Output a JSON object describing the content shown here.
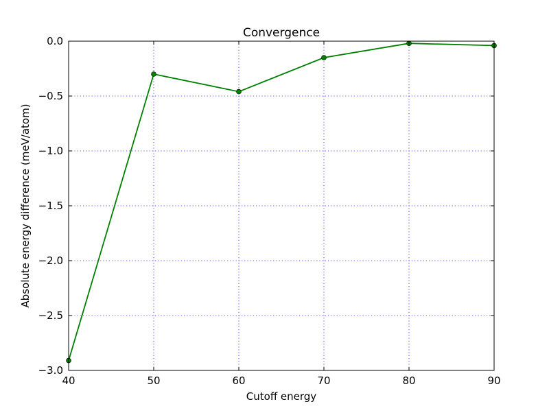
{
  "chart_data": {
    "type": "line",
    "title": "Convergence",
    "xlabel": "Cutoff energy",
    "ylabel": "Absolute energy difference (meV/atom)",
    "xlim": [
      40,
      90
    ],
    "ylim": [
      -3.0,
      0.0
    ],
    "xticks": [
      40,
      50,
      60,
      70,
      80,
      90
    ],
    "xtick_labels": [
      "40",
      "50",
      "60",
      "70",
      "80",
      "90"
    ],
    "yticks": [
      0.0,
      -0.5,
      -1.0,
      -1.5,
      -2.0,
      -2.5,
      -3.0
    ],
    "ytick_labels": [
      "0.0",
      "−0.5",
      "−1.0",
      "−1.5",
      "−2.0",
      "−2.5",
      "−3.0"
    ],
    "grid": true,
    "series": [
      {
        "color": "#008000",
        "marker": "circle",
        "x": [
          40,
          50,
          60,
          70,
          80,
          90
        ],
        "y": [
          -2.91,
          -0.3,
          -0.46,
          -0.15,
          -0.02,
          -0.04
        ]
      }
    ]
  }
}
